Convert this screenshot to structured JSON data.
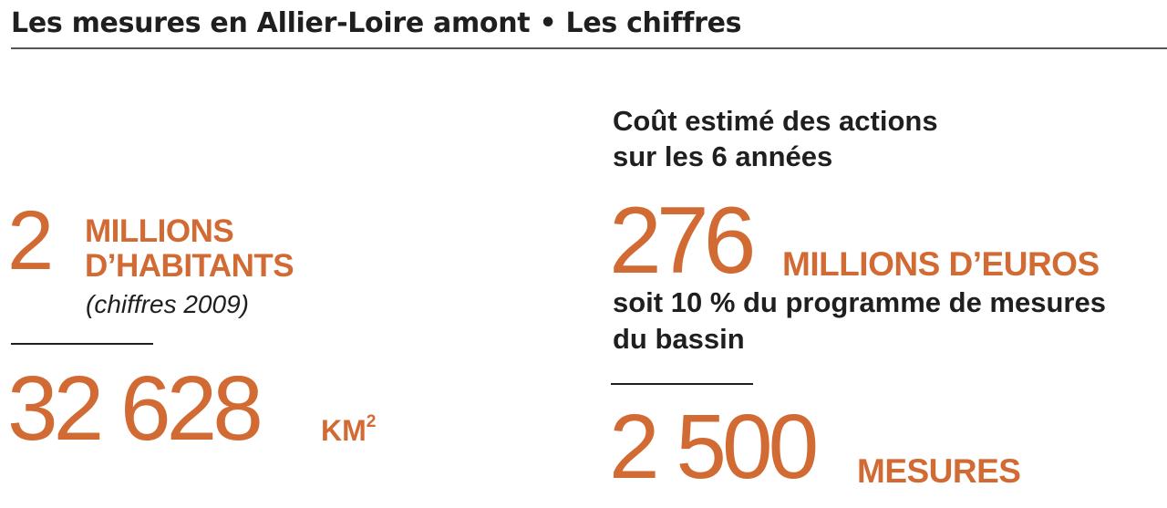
{
  "header": {
    "title": "Les mesures en Allier-Loire amont • Les chiffres"
  },
  "left": {
    "population": {
      "number": "2",
      "unit_line1": "MILLIONS",
      "unit_line2": "D’HABITANTS",
      "note": "(chiffres 2009)"
    },
    "area": {
      "number": "32 628",
      "unit": "KM",
      "unit_sup": "2"
    }
  },
  "right": {
    "cost": {
      "heading_line1": "Coût estimé des actions",
      "heading_line2": "sur les 6 années",
      "number": "276",
      "unit": "MILLIONS D’EUROS",
      "detail_line1": "soit 10 % du programme de mesures",
      "detail_line2": "du bassin"
    },
    "measures": {
      "number": "2 500",
      "unit": "MESURES"
    }
  },
  "colors": {
    "accent": "#d26a34",
    "text_dark": "#1f1f1f",
    "rule": "#555555"
  }
}
